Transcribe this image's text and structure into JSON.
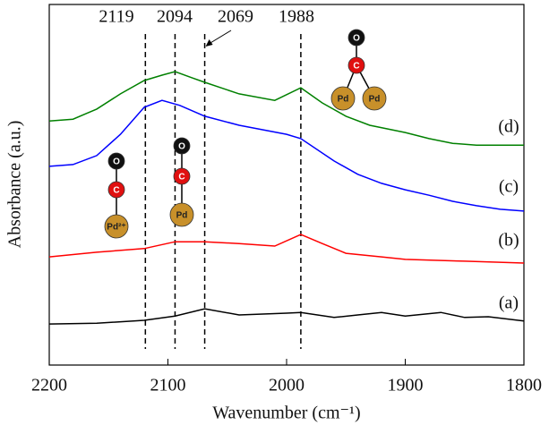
{
  "chart_data": {
    "type": "line",
    "x_label": "Wavenumber (cm⁻¹)",
    "y_label": "Absorbance (a.u.)",
    "xlim": [
      2200,
      1800
    ],
    "xticks": [
      2200,
      2100,
      2000,
      1900,
      1800
    ],
    "ylim": [
      0,
      100
    ],
    "vlines": [
      2119,
      2094,
      2069,
      1988
    ],
    "series": [
      {
        "name": "(a)",
        "color": "#000000",
        "x": [
          2200,
          2160,
          2120,
          2094,
          2069,
          2040,
          2000,
          1988,
          1960,
          1940,
          1920,
          1900,
          1870,
          1850,
          1830,
          1800
        ],
        "values": [
          11.4,
          11.6,
          12.4,
          13.6,
          15.6,
          13.9,
          14.4,
          14.6,
          13.2,
          13.9,
          14.6,
          13.6,
          14.6,
          13.2,
          13.4,
          12.2
        ]
      },
      {
        "name": "(b)",
        "color": "#ff0000",
        "x": [
          2200,
          2160,
          2120,
          2094,
          2069,
          2040,
          2010,
          1988,
          1970,
          1950,
          1920,
          1900,
          1850,
          1800
        ],
        "values": [
          30.0,
          31.3,
          32.3,
          34.2,
          34.2,
          33.7,
          33.0,
          36.2,
          33.7,
          31.0,
          30.0,
          29.3,
          28.8,
          28.3
        ]
      },
      {
        "name": "(c)",
        "color": "#0000ff",
        "x": [
          2200,
          2180,
          2160,
          2140,
          2120,
          2105,
          2090,
          2069,
          2040,
          2000,
          1988,
          1960,
          1940,
          1920,
          1900,
          1880,
          1860,
          1840,
          1820,
          1800
        ],
        "values": [
          55.1,
          55.6,
          58.1,
          64.0,
          71.5,
          73.4,
          72.0,
          69.0,
          66.5,
          64.0,
          62.8,
          56.6,
          52.9,
          50.4,
          48.6,
          47.1,
          45.4,
          44.2,
          43.2,
          42.7
        ]
      },
      {
        "name": "(d)",
        "color": "#008000",
        "x": [
          2200,
          2180,
          2160,
          2140,
          2120,
          2105,
          2094,
          2080,
          2069,
          2040,
          2010,
          1988,
          1970,
          1950,
          1930,
          1900,
          1880,
          1860,
          1840,
          1800
        ],
        "values": [
          67.7,
          68.2,
          71.0,
          75.2,
          78.9,
          80.4,
          81.4,
          79.7,
          78.4,
          75.2,
          73.4,
          76.9,
          72.7,
          69.0,
          66.5,
          64.5,
          62.8,
          61.5,
          61.0,
          61.0
        ]
      }
    ],
    "molecules": [
      {
        "atoms": [
          "O",
          "C",
          "Pd²⁺"
        ]
      },
      {
        "atoms": [
          "O",
          "C",
          "Pd"
        ]
      },
      {
        "atoms": [
          "O",
          "C",
          "Pd",
          "Pd"
        ]
      }
    ]
  }
}
